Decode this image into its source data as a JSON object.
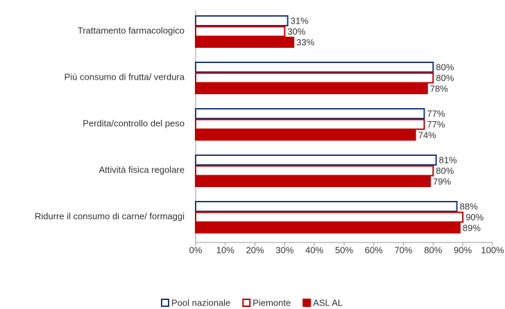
{
  "chart_data": {
    "type": "bar",
    "orientation": "horizontal",
    "categories": [
      "Trattamento farmacologico",
      "Più consumo di frutta/ verdura",
      "Perdita/controllo del peso",
      "Attività fisica regolare",
      "Ridurre il consumo di carne/ formaggi"
    ],
    "series": [
      {
        "name": "Pool nazionale",
        "color": "#1f3a7a",
        "fill": "#ffffff",
        "values": [
          31,
          80,
          77,
          81,
          88
        ],
        "value_labels": [
          "31%",
          "80%",
          "77%",
          "81%",
          "88%"
        ]
      },
      {
        "name": "Piemonte",
        "color": "#c00000",
        "fill": "#ffffff",
        "values": [
          30,
          80,
          77,
          80,
          90
        ],
        "value_labels": [
          "30%",
          "80%",
          "77%",
          "80%",
          "90%"
        ]
      },
      {
        "name": "ASL AL",
        "color": "#c00000",
        "fill": "#c00000",
        "values": [
          33,
          78,
          74,
          79,
          89
        ],
        "value_labels": [
          "33%",
          "78%",
          "74%",
          "79%",
          "89%"
        ]
      }
    ],
    "xlim": [
      0,
      100
    ],
    "xticks": [
      {
        "value": 0,
        "label": "0%"
      },
      {
        "value": 10,
        "label": "10%"
      },
      {
        "value": 20,
        "label": "20%"
      },
      {
        "value": 30,
        "label": "30%"
      },
      {
        "value": 40,
        "label": "40%"
      },
      {
        "value": 50,
        "label": "50%"
      },
      {
        "value": 60,
        "label": "60%"
      },
      {
        "value": 70,
        "label": "70%"
      },
      {
        "value": 80,
        "label": "80%"
      },
      {
        "value": 90,
        "label": "90%"
      },
      {
        "value": 100,
        "label": "100%"
      }
    ],
    "grid": false,
    "legend": "bottom"
  }
}
